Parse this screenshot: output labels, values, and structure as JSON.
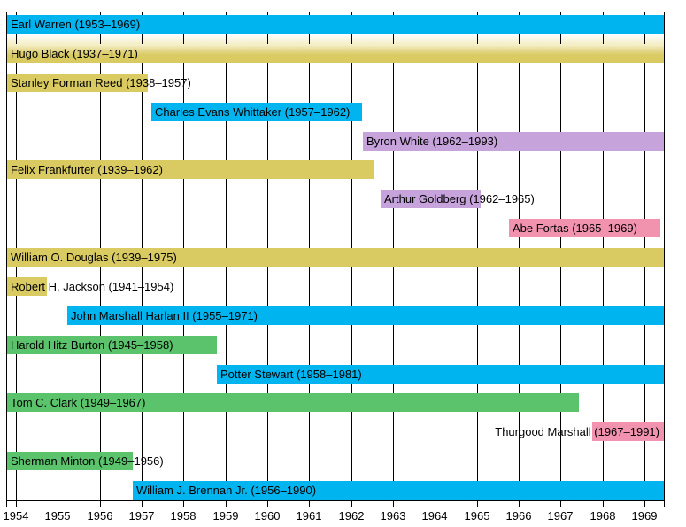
{
  "chart_data": {
    "type": "bar",
    "subtype": "horizontal-timeline-gantt",
    "title": "",
    "xlabel": "",
    "ylabel": "",
    "x_axis": {
      "tick_labels": [
        "1954",
        "1955",
        "1956",
        "1957",
        "1958",
        "1959",
        "1960",
        "1961",
        "1962",
        "1963",
        "1964",
        "1965",
        "1966",
        "1967",
        "1968",
        "1969"
      ],
      "first_tick_year": 1954,
      "range_years": [
        1953.78,
        1969.48
      ],
      "grid": true,
      "legend": "none"
    },
    "palette": {
      "blue": "#00B4EF",
      "khaki": "#D9CA62",
      "green": "#5BC36C",
      "purple": "#C7A3DB",
      "pink": "#F192AE",
      "grid": "#000000",
      "text": "#000000",
      "background": "#FFFFFF"
    },
    "bars": [
      {
        "id": "earl-warren",
        "row": 0,
        "label": "Earl Warren (1953–1969)",
        "color": "blue",
        "start": null,
        "end": null,
        "label_align": "left"
      },
      {
        "id": "hugo-black",
        "row": 1,
        "label": "Hugo Black (1937–1971)",
        "color": "khaki",
        "start": null,
        "end": null,
        "label_align": "left",
        "gradient_top": true
      },
      {
        "id": "stanley-forman-reed",
        "row": 2,
        "label": "Stanley Forman Reed (1938–1957)",
        "color": "khaki",
        "start": null,
        "end": 1957.15,
        "label_align": "left"
      },
      {
        "id": "charles-evans-whittaker",
        "row": 3,
        "label": "Charles Evans Whittaker (1957–1962)",
        "color": "blue",
        "start": 1957.23,
        "end": 1962.25,
        "label_align": "left"
      },
      {
        "id": "byron-white",
        "row": 4,
        "label": "Byron White (1962–1993)",
        "color": "purple",
        "start": 1962.29,
        "end": null,
        "label_align": "left"
      },
      {
        "id": "felix-frankfurter",
        "row": 5,
        "label": "Felix Frankfurter (1939–1962)",
        "color": "khaki",
        "start": null,
        "end": 1962.56,
        "label_align": "left"
      },
      {
        "id": "arthur-goldberg",
        "row": 6,
        "label": "Arthur Goldberg (1962–1965)",
        "color": "purple",
        "start": 1962.7,
        "end": 1965.09,
        "label_align": "left"
      },
      {
        "id": "abe-fortas",
        "row": 7,
        "label": "Abe Fortas (1965–1969)",
        "color": "pink",
        "start": 1965.76,
        "end": 1969.37,
        "label_align": "left"
      },
      {
        "id": "william-o-douglas",
        "row": 8,
        "label": "William O. Douglas (1939–1975)",
        "color": "khaki",
        "start": null,
        "end": null,
        "label_align": "left"
      },
      {
        "id": "robert-h-jackson",
        "row": 9,
        "label": "Robert H. Jackson (1941–1954)",
        "color": "khaki",
        "start": null,
        "end": 1954.75,
        "label_align": "left"
      },
      {
        "id": "john-marshall-harlan-ii",
        "row": 10,
        "label": "John Marshall Harlan II (1955–1971)",
        "color": "blue",
        "start": 1955.23,
        "end": null,
        "label_align": "left"
      },
      {
        "id": "harold-hitz-burton",
        "row": 11,
        "label": "Harold Hitz Burton (1945–1958)",
        "color": "green",
        "start": null,
        "end": 1958.79,
        "label_align": "left"
      },
      {
        "id": "potter-stewart",
        "row": 12,
        "label": "Potter Stewart (1958–1981)",
        "color": "blue",
        "start": 1958.79,
        "end": null,
        "label_align": "left"
      },
      {
        "id": "tom-c-clark",
        "row": 13,
        "label": "Tom C. Clark (1949–1967)",
        "color": "green",
        "start": null,
        "end": 1967.44,
        "label_align": "left"
      },
      {
        "id": "thurgood-marshall",
        "row": 14,
        "label": "Thurgood Marshall (1967–1991)",
        "color": "pink",
        "start": 1967.75,
        "end": null,
        "label_align": "right"
      },
      {
        "id": "sherman-minton",
        "row": 15,
        "label": "Sherman Minton (1949–1956)",
        "color": "green",
        "start": null,
        "end": 1956.79,
        "label_align": "left"
      },
      {
        "id": "william-j-brennan-jr",
        "row": 16,
        "label": "William J. Brennan Jr. (1956–1990)",
        "color": "blue",
        "start": 1956.79,
        "end": null,
        "label_align": "left"
      }
    ]
  }
}
